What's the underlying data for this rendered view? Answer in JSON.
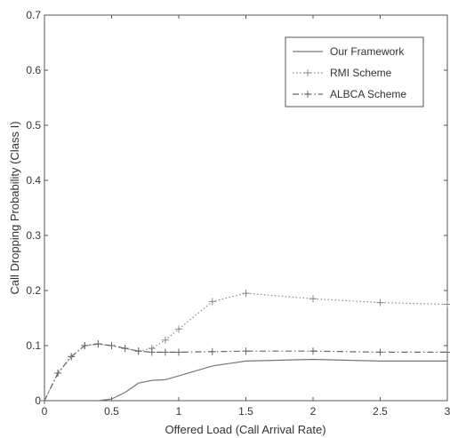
{
  "chart_data": {
    "type": "line",
    "title": "",
    "xlabel": "Offered Load (Call Arrival Rate)",
    "ylabel": "Call Dropping Probability (Class I)",
    "xlim": [
      0,
      3
    ],
    "ylim": [
      0,
      0.7
    ],
    "xticks": [
      0,
      0.5,
      1,
      1.5,
      2,
      2.5,
      3
    ],
    "xtick_labels": [
      "0",
      "0.5",
      "1",
      "1.5",
      "2",
      "2.5",
      "3"
    ],
    "yticks": [
      0,
      0.1,
      0.2,
      0.3,
      0.4,
      0.5,
      0.6,
      0.7
    ],
    "ytick_labels": [
      "0",
      "0.1",
      "0.2",
      "0.3",
      "0.4",
      "0.5",
      "0.6",
      "0.7"
    ],
    "grid": false,
    "legend_position": "top-right",
    "series": [
      {
        "name": "Our Framework",
        "style": "solid",
        "marker": "none",
        "color": "#777777",
        "x": [
          0,
          0.1,
          0.2,
          0.3,
          0.4,
          0.5,
          0.6,
          0.7,
          0.8,
          0.9,
          1.0,
          1.25,
          1.5,
          2.0,
          2.5,
          3.0
        ],
        "y": [
          0,
          0,
          0,
          0,
          0,
          0.003,
          0.015,
          0.032,
          0.037,
          0.038,
          0.045,
          0.063,
          0.072,
          0.075,
          0.072,
          0.072
        ]
      },
      {
        "name": "RMI Scheme",
        "style": "dotted",
        "marker": "plus",
        "color": "#888888",
        "x": [
          0,
          0.1,
          0.2,
          0.3,
          0.4,
          0.5,
          0.6,
          0.7,
          0.8,
          0.9,
          1.0,
          1.25,
          1.5,
          2.0,
          2.5,
          3.0
        ],
        "y": [
          0,
          0.05,
          0.08,
          0.1,
          0.103,
          0.1,
          0.095,
          0.09,
          0.095,
          0.11,
          0.13,
          0.18,
          0.195,
          0.185,
          0.178,
          0.175
        ]
      },
      {
        "name": "ALBCA Scheme",
        "style": "dashdot",
        "marker": "plus",
        "color": "#666666",
        "x": [
          0,
          0.1,
          0.2,
          0.3,
          0.4,
          0.5,
          0.6,
          0.7,
          0.8,
          0.9,
          1.0,
          1.25,
          1.5,
          2.0,
          2.5,
          3.0
        ],
        "y": [
          0,
          0.05,
          0.08,
          0.1,
          0.103,
          0.1,
          0.095,
          0.09,
          0.088,
          0.088,
          0.088,
          0.089,
          0.09,
          0.09,
          0.088,
          0.088
        ]
      }
    ]
  }
}
